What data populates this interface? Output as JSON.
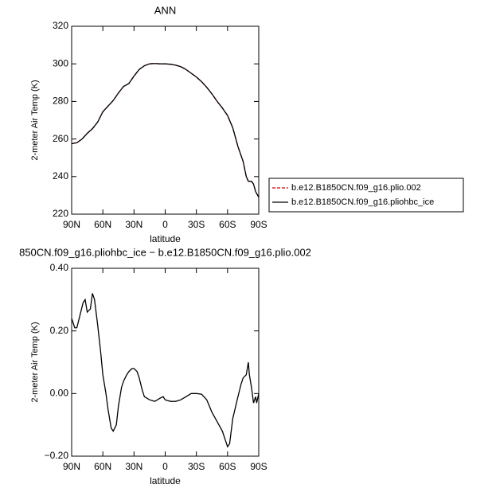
{
  "chart_data": [
    {
      "type": "line",
      "title": "ANN",
      "xlabel": "latitude",
      "ylabel": "2-meter Air Temp (K)",
      "xlim": [
        90,
        -90
      ],
      "ylim": [
        220,
        320
      ],
      "xticks": [
        {
          "value": 90,
          "label": "90N"
        },
        {
          "value": 60,
          "label": "60N"
        },
        {
          "value": 30,
          "label": "30N"
        },
        0,
        {
          "value": -30,
          "label": "30S"
        },
        {
          "value": -60,
          "label": "60S"
        },
        {
          "value": -90,
          "label": "90S"
        }
      ],
      "yticks": [
        220,
        240,
        260,
        280,
        300,
        320
      ],
      "legend": "right",
      "x": [
        90,
        85,
        80,
        75,
        70,
        65,
        60,
        55,
        50,
        45,
        40,
        35,
        30,
        25,
        20,
        15,
        10,
        5,
        0,
        -5,
        -10,
        -15,
        -20,
        -25,
        -30,
        -35,
        -40,
        -45,
        -50,
        -55,
        -60,
        -65,
        -70,
        -75,
        -78,
        -80,
        -83,
        -85,
        -87,
        -90
      ],
      "series": [
        {
          "name": "b.e12.B1850CN.f09_g16.plio.002",
          "color": "#cc0000",
          "linestyle": "dashed",
          "values": [
            257.5,
            258,
            260,
            263,
            265.5,
            269,
            274.5,
            277.5,
            280.5,
            284.5,
            288,
            289.5,
            293.5,
            297,
            299,
            300,
            300.2,
            300,
            300,
            299.8,
            299.3,
            298.5,
            297,
            295,
            293,
            290.5,
            287.5,
            284,
            280,
            276.5,
            272.5,
            266,
            256,
            248,
            240,
            237.5,
            237.5,
            236,
            232,
            229
          ]
        },
        {
          "name": "b.e12.B1850CN.f09_g16.pliohbc_ice",
          "color": "#000000",
          "linestyle": "solid",
          "values": [
            257.5,
            258,
            260,
            263,
            265.5,
            269,
            274.5,
            277.5,
            280.5,
            284.5,
            288,
            289.5,
            293.5,
            297,
            299,
            300,
            300.2,
            300,
            300,
            299.8,
            299.3,
            298.5,
            297,
            295,
            293,
            290.5,
            287.5,
            284,
            280,
            276.5,
            272.5,
            266,
            256,
            248,
            240,
            237.5,
            237.5,
            236,
            232,
            229
          ]
        }
      ]
    },
    {
      "type": "line",
      "title": "850CN.f09_g16.pliohbc_ice − b.e12.B1850CN.f09_g16.plio.002",
      "xlabel": "latitude",
      "ylabel": "2-meter Air Temp (K)",
      "xlim": [
        90,
        -90
      ],
      "ylim": [
        -0.2,
        0.4
      ],
      "xticks": [
        {
          "value": 90,
          "label": "90N"
        },
        {
          "value": 60,
          "label": "60N"
        },
        {
          "value": 30,
          "label": "30N"
        },
        0,
        {
          "value": -30,
          "label": "30S"
        },
        {
          "value": -60,
          "label": "60S"
        },
        {
          "value": -90,
          "label": "90S"
        }
      ],
      "yticks": [
        {
          "value": -0.2,
          "label": "−0.20"
        },
        {
          "value": 0,
          "label": "0.00"
        },
        {
          "value": 0.2,
          "label": "0.20"
        },
        {
          "value": 0.4,
          "label": "0.40"
        }
      ],
      "x": [
        90,
        87,
        85,
        82,
        79,
        77,
        75,
        72,
        70,
        68,
        65,
        62,
        60,
        57,
        55,
        52,
        50,
        47,
        45,
        42,
        40,
        37,
        35,
        32,
        30,
        27,
        25,
        22,
        20,
        15,
        10,
        5,
        2,
        0,
        -5,
        -10,
        -15,
        -20,
        -25,
        -30,
        -35,
        -40,
        -45,
        -50,
        -55,
        -58,
        -60,
        -62,
        -65,
        -70,
        -73,
        -75,
        -78,
        -80,
        -81,
        -83,
        -85,
        -87,
        -88,
        -90
      ],
      "series": [
        {
          "color": "#000000",
          "linestyle": "solid",
          "values": [
            0.24,
            0.21,
            0.21,
            0.25,
            0.29,
            0.3,
            0.26,
            0.27,
            0.32,
            0.3,
            0.22,
            0.13,
            0.06,
            0.0,
            -0.05,
            -0.11,
            -0.12,
            -0.1,
            -0.04,
            0.02,
            0.04,
            0.06,
            0.07,
            0.08,
            0.08,
            0.07,
            0.05,
            0.01,
            -0.01,
            -0.02,
            -0.025,
            -0.015,
            -0.01,
            -0.02,
            -0.025,
            -0.025,
            -0.02,
            -0.01,
            0.0,
            0.0,
            -0.002,
            -0.02,
            -0.06,
            -0.09,
            -0.12,
            -0.15,
            -0.17,
            -0.16,
            -0.08,
            -0.01,
            0.03,
            0.05,
            0.06,
            0.1,
            0.06,
            0.02,
            -0.03,
            -0.01,
            -0.03,
            0.0
          ]
        }
      ]
    }
  ]
}
